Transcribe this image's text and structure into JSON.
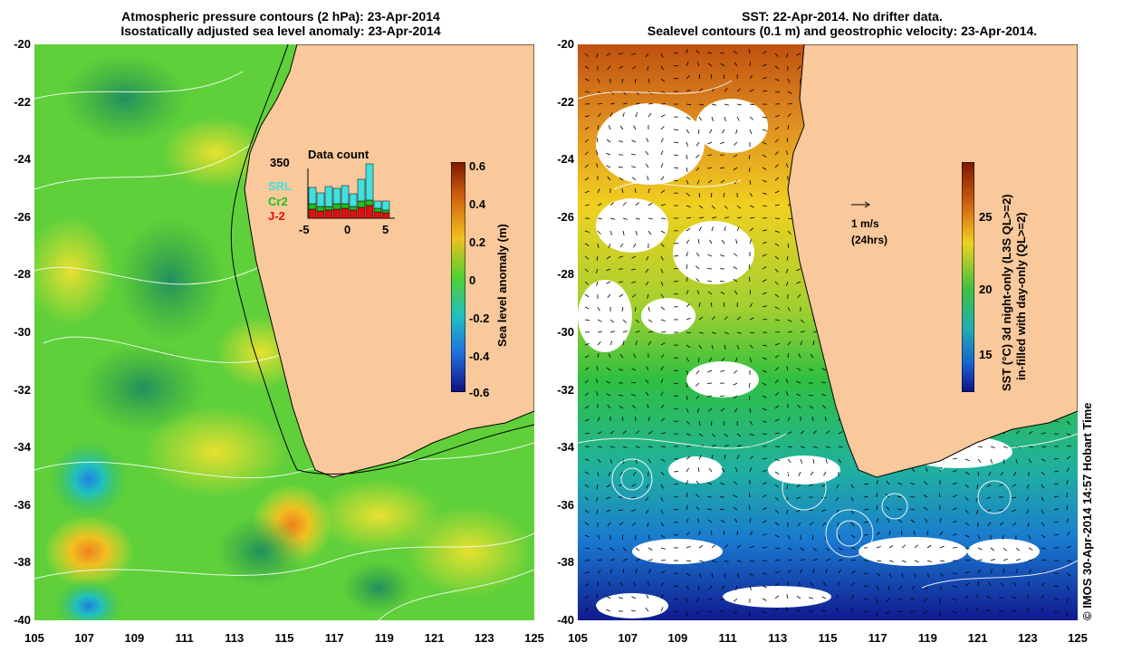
{
  "left": {
    "title_line1": "Atmospheric pressure contours (2 hPa): 23-Apr-2014",
    "title_line2": "Isostatically adjusted sea level anomaly: 23-Apr-2014",
    "colorbar_label": "Sea level anomaly (m)",
    "colorbar_ticks": [
      "0.6",
      "0.4",
      "0.2",
      "0",
      "-0.2",
      "-0.4",
      "-0.6"
    ],
    "inset": {
      "title": "Data count",
      "ymax_label": "350",
      "x_ticks": [
        "-5",
        "0",
        "5"
      ],
      "legend": [
        {
          "label": "SRL",
          "color": "#40e0e0"
        },
        {
          "label": "Cr2",
          "color": "#20c020"
        },
        {
          "label": "J-2",
          "color": "#e01010"
        }
      ]
    }
  },
  "right": {
    "title_line1": "SST: 22-Apr-2014. No drifter data.",
    "title_line2": "Sealevel contours (0.1 m) and geostrophic velocity: 23-Apr-2014.",
    "colorbar_label_line1": "SST (°C)  3d night-only (L3S QL>=2)",
    "colorbar_label_line2": "in-filled with day-only (QL>=2)",
    "colorbar_ticks": [
      "25",
      "20",
      "15"
    ],
    "velocity_label": "1 m/s",
    "velocity_sublabel": "(24hrs)"
  },
  "y_ticks": [
    "-20",
    "-22",
    "-24",
    "-26",
    "-28",
    "-30",
    "-32",
    "-34",
    "-36",
    "-38",
    "-40"
  ],
  "x_ticks": [
    "105",
    "107",
    "109",
    "111",
    "113",
    "115",
    "117",
    "119",
    "121",
    "123",
    "125"
  ],
  "credit": "© IMOS 30-Apr-2014 14:57 Hobart Time",
  "colors": {
    "land": "#f9c89b",
    "sla_green": "#5fd03a",
    "sst_warm": "#d07020",
    "sst_cool": "#1a7ad0"
  }
}
